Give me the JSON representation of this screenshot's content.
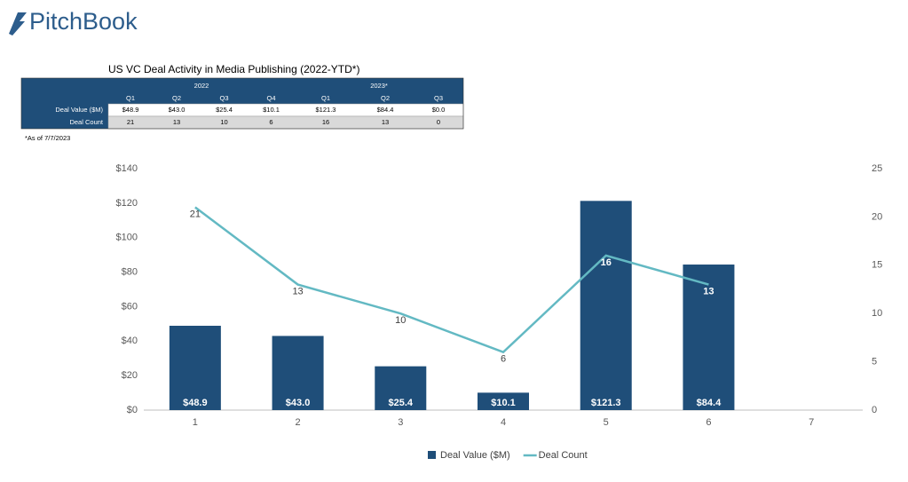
{
  "logo": "PitchBook",
  "table": {
    "title": "US VC Deal Activity in Media Publishing (2022-YTD*)",
    "years": [
      "2022",
      "2023*"
    ],
    "quarters": [
      "Q1",
      "Q2",
      "Q3",
      "Q4",
      "Q1",
      "Q2",
      "Q3"
    ],
    "rows": [
      {
        "label": "Deal Value ($M)",
        "cells": [
          "$48.9",
          "$43.0",
          "$25.4",
          "$10.1",
          "$121.3",
          "$84.4",
          "$0.0"
        ]
      },
      {
        "label": "Deal Count",
        "cells": [
          "21",
          "13",
          "10",
          "6",
          "16",
          "13",
          "0"
        ]
      }
    ],
    "note": "*As of 7/7/2023"
  },
  "chart_data": {
    "type": "bar",
    "categories": [
      "1",
      "2",
      "3",
      "4",
      "5",
      "6",
      "7"
    ],
    "series": [
      {
        "name": "Deal Value ($M)",
        "type": "bar",
        "color": "#1f4e79",
        "values": [
          48.9,
          43.0,
          25.4,
          10.1,
          121.3,
          84.4,
          0
        ],
        "value_labels": [
          "$48.9",
          "$43.0",
          "$25.4",
          "$10.1",
          "$121.3",
          "$84.4",
          null
        ]
      },
      {
        "name": "Deal Count",
        "type": "line",
        "axis": "y2",
        "color": "#63b9c3",
        "values": [
          21,
          13,
          10,
          6,
          16,
          13,
          null
        ]
      }
    ],
    "ylim": [
      0,
      140
    ],
    "yticks": [
      {
        "value": 0,
        "label": "$0"
      },
      {
        "value": 20,
        "label": "$20"
      },
      {
        "value": 40,
        "label": "$40"
      },
      {
        "value": 60,
        "label": "$60"
      },
      {
        "value": 80,
        "label": "$80"
      },
      {
        "value": 100,
        "label": "$100"
      },
      {
        "value": 120,
        "label": "$120"
      },
      {
        "value": 140,
        "label": "$140"
      }
    ],
    "y2lim": [
      0,
      25
    ],
    "y2ticks": [
      0,
      5,
      10,
      15,
      20,
      25
    ],
    "grid": false,
    "legend": "bottom"
  }
}
